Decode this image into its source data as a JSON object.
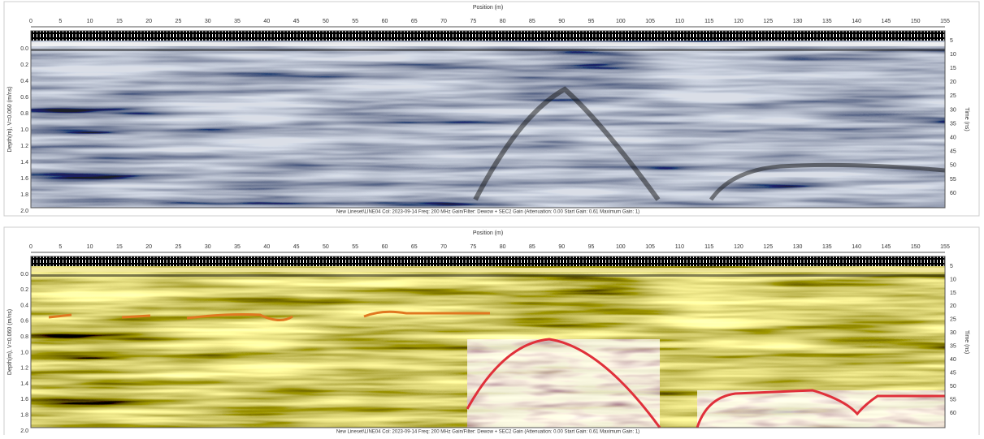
{
  "panels": [
    {
      "x_axis_title": "Position (m)",
      "x_ticks": [
        "0",
        "5",
        "10",
        "15",
        "20",
        "25",
        "30",
        "35",
        "40",
        "45",
        "50",
        "55",
        "60",
        "65",
        "70",
        "75",
        "80",
        "85",
        "90",
        "95",
        "100",
        "105",
        "110",
        "115",
        "120",
        "125",
        "130",
        "135",
        "140",
        "145",
        "150",
        "155"
      ],
      "y_axis_title": "Depth(m), V=0.060 (m/ns)",
      "y_ticks": [
        "0.0",
        "0.2",
        "0.4",
        "0.6",
        "0.8",
        "1.0",
        "1.2",
        "1.4",
        "1.6",
        "1.8",
        "2.0"
      ],
      "y2_axis_title": "Time (ns)",
      "y2_ticks": [
        "5",
        "10",
        "15",
        "20",
        "25",
        "30",
        "35",
        "40",
        "45",
        "50",
        "55",
        "60"
      ],
      "caption": "New Lineset\\LINE04  Col: 2023-09-14 Freq: 200 MHz Gain/Filter: Dewow + SEC2 Gain (Attenuation: 0.00 Start Gain: 0.61 Maximum Gain: 1)"
    },
    {
      "x_axis_title": "Position (m)",
      "x_ticks": [
        "0",
        "5",
        "10",
        "15",
        "20",
        "25",
        "30",
        "35",
        "40",
        "45",
        "50",
        "55",
        "60",
        "65",
        "70",
        "75",
        "80",
        "85",
        "90",
        "95",
        "100",
        "105",
        "110",
        "115",
        "120",
        "125",
        "130",
        "135",
        "140",
        "145",
        "150",
        "155"
      ],
      "y_axis_title": "Depth(m), V=0.060 (m/ns)",
      "y_ticks": [
        "0.0",
        "0.2",
        "0.4",
        "0.6",
        "0.8",
        "1.0",
        "1.2",
        "1.4",
        "1.6",
        "1.8",
        "2.0"
      ],
      "y2_axis_title": "Time (ns)",
      "y2_ticks": [
        "5",
        "10",
        "15",
        "20",
        "25",
        "30",
        "35",
        "40",
        "45",
        "50",
        "55",
        "60"
      ],
      "caption": "New Lineset\\LINE04  Col: 2023-09-14 Freq: 200 MHz Gain/Filter: Dewow + SEC2 Gain (Attenuation: 0.00 Start Gain: 0.61 Maximum Gain: 1)"
    }
  ]
}
